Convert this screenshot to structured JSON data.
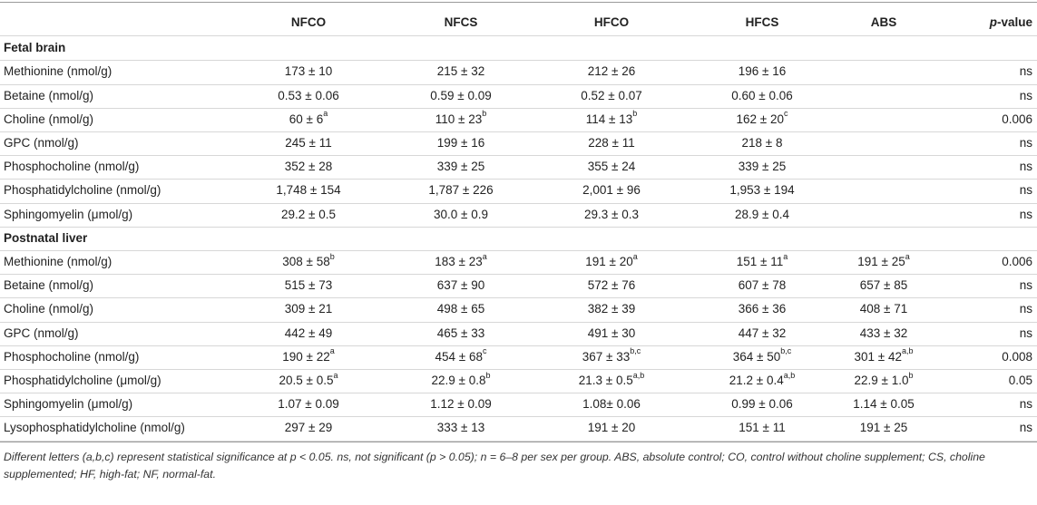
{
  "table": {
    "headers": [
      "",
      "NFCO",
      "NFCS",
      "HFCO",
      "HFCS",
      "ABS"
    ],
    "pvalue_header": {
      "italic": "p",
      "rest": "-value"
    },
    "sections": [
      {
        "title": "Fetal brain",
        "rows": [
          {
            "label": "Methionine (nmol/g)",
            "cells": [
              {
                "v": "173 ± 10",
                "s": ""
              },
              {
                "v": "215 ± 32",
                "s": ""
              },
              {
                "v": "212 ± 26",
                "s": ""
              },
              {
                "v": "196 ± 16",
                "s": ""
              },
              {
                "v": "",
                "s": ""
              }
            ],
            "p": "ns"
          },
          {
            "label": "Betaine (nmol/g)",
            "cells": [
              {
                "v": "0.53 ± 0.06",
                "s": ""
              },
              {
                "v": "0.59 ± 0.09",
                "s": ""
              },
              {
                "v": "0.52 ± 0.07",
                "s": ""
              },
              {
                "v": "0.60 ± 0.06",
                "s": ""
              },
              {
                "v": "",
                "s": ""
              }
            ],
            "p": "ns"
          },
          {
            "label": "Choline (nmol/g)",
            "cells": [
              {
                "v": "60 ± 6",
                "s": "a"
              },
              {
                "v": "110 ± 23",
                "s": "b"
              },
              {
                "v": "114 ± 13",
                "s": "b"
              },
              {
                "v": "162 ± 20",
                "s": "c"
              },
              {
                "v": "",
                "s": ""
              }
            ],
            "p": "0.006"
          },
          {
            "label": "GPC (nmol/g)",
            "cells": [
              {
                "v": "245 ± 11",
                "s": ""
              },
              {
                "v": "199 ± 16",
                "s": ""
              },
              {
                "v": "228 ± 11",
                "s": ""
              },
              {
                "v": "218 ± 8",
                "s": ""
              },
              {
                "v": "",
                "s": ""
              }
            ],
            "p": "ns"
          },
          {
            "label": "Phosphocholine (nmol/g)",
            "cells": [
              {
                "v": "352 ± 28",
                "s": ""
              },
              {
                "v": "339 ± 25",
                "s": ""
              },
              {
                "v": "355 ± 24",
                "s": ""
              },
              {
                "v": "339 ± 25",
                "s": ""
              },
              {
                "v": "",
                "s": ""
              }
            ],
            "p": "ns"
          },
          {
            "label": "Phosphatidylcholine (nmol/g)",
            "cells": [
              {
                "v": "1,748 ± 154",
                "s": ""
              },
              {
                "v": "1,787 ± 226",
                "s": ""
              },
              {
                "v": "2,001 ± 96",
                "s": ""
              },
              {
                "v": "1,953 ± 194",
                "s": ""
              },
              {
                "v": "",
                "s": ""
              }
            ],
            "p": "ns"
          },
          {
            "label": "Sphingomyelin (μmol/g)",
            "cells": [
              {
                "v": "29.2 ± 0.5",
                "s": ""
              },
              {
                "v": "30.0 ± 0.9",
                "s": ""
              },
              {
                "v": "29.3 ± 0.3",
                "s": ""
              },
              {
                "v": "28.9 ± 0.4",
                "s": ""
              },
              {
                "v": "",
                "s": ""
              }
            ],
            "p": "ns"
          }
        ]
      },
      {
        "title": "Postnatal liver",
        "rows": [
          {
            "label": "Methionine (nmol/g)",
            "cells": [
              {
                "v": "308 ± 58",
                "s": "b"
              },
              {
                "v": "183 ± 23",
                "s": "a"
              },
              {
                "v": "191 ± 20",
                "s": "a"
              },
              {
                "v": "151 ± 11",
                "s": "a"
              },
              {
                "v": "191 ± 25",
                "s": "a"
              }
            ],
            "p": "0.006"
          },
          {
            "label": "Betaine (nmol/g)",
            "cells": [
              {
                "v": "515 ± 73",
                "s": ""
              },
              {
                "v": "637 ± 90",
                "s": ""
              },
              {
                "v": "572 ± 76",
                "s": ""
              },
              {
                "v": "607 ± 78",
                "s": ""
              },
              {
                "v": "657 ± 85",
                "s": ""
              }
            ],
            "p": "ns"
          },
          {
            "label": "Choline (nmol/g)",
            "cells": [
              {
                "v": "309 ± 21",
                "s": ""
              },
              {
                "v": "498 ± 65",
                "s": ""
              },
              {
                "v": "382 ± 39",
                "s": ""
              },
              {
                "v": "366 ± 36",
                "s": ""
              },
              {
                "v": "408 ± 71",
                "s": ""
              }
            ],
            "p": "ns"
          },
          {
            "label": "GPC (nmol/g)",
            "cells": [
              {
                "v": "442 ± 49",
                "s": ""
              },
              {
                "v": "465 ± 33",
                "s": ""
              },
              {
                "v": "491 ± 30",
                "s": ""
              },
              {
                "v": "447 ± 32",
                "s": ""
              },
              {
                "v": "433 ± 32",
                "s": ""
              }
            ],
            "p": "ns"
          },
          {
            "label": "Phosphocholine (nmol/g)",
            "cells": [
              {
                "v": "190 ± 22",
                "s": "a"
              },
              {
                "v": "454 ± 68",
                "s": "c"
              },
              {
                "v": "367 ± 33",
                "s": "b,c"
              },
              {
                "v": "364 ± 50",
                "s": "b,c"
              },
              {
                "v": "301 ± 42",
                "s": "a,b"
              }
            ],
            "p": "0.008"
          },
          {
            "label": "Phosphatidylcholine (μmol/g)",
            "cells": [
              {
                "v": "20.5 ± 0.5",
                "s": "a"
              },
              {
                "v": "22.9 ± 0.8",
                "s": "b"
              },
              {
                "v": "21.3 ± 0.5",
                "s": "a,b"
              },
              {
                "v": "21.2 ± 0.4",
                "s": "a,b"
              },
              {
                "v": "22.9 ± 1.0",
                "s": "b"
              }
            ],
            "p": "0.05"
          },
          {
            "label": "Sphingomyelin (μmol/g)",
            "cells": [
              {
                "v": "1.07 ± 0.09",
                "s": ""
              },
              {
                "v": "1.12 ± 0.09",
                "s": ""
              },
              {
                "v": "1.08± 0.06",
                "s": ""
              },
              {
                "v": "0.99 ± 0.06",
                "s": ""
              },
              {
                "v": "1.14 ± 0.05",
                "s": ""
              }
            ],
            "p": "ns"
          },
          {
            "label": "Lysophosphatidylcholine (nmol/g)",
            "cells": [
              {
                "v": "297 ± 29",
                "s": ""
              },
              {
                "v": "333 ± 13",
                "s": ""
              },
              {
                "v": "191 ± 20",
                "s": ""
              },
              {
                "v": "151 ± 11",
                "s": ""
              },
              {
                "v": "191 ± 25",
                "s": ""
              }
            ],
            "p": "ns"
          }
        ]
      }
    ],
    "footnote": "Different letters (a,b,c) represent statistical significance at p < 0.05. ns, not significant (p > 0.05); n = 6–8 per sex per group. ABS, absolute control; CO, control without choline supplement; CS, choline supplemented; HF, high-fat; NF, normal-fat."
  }
}
